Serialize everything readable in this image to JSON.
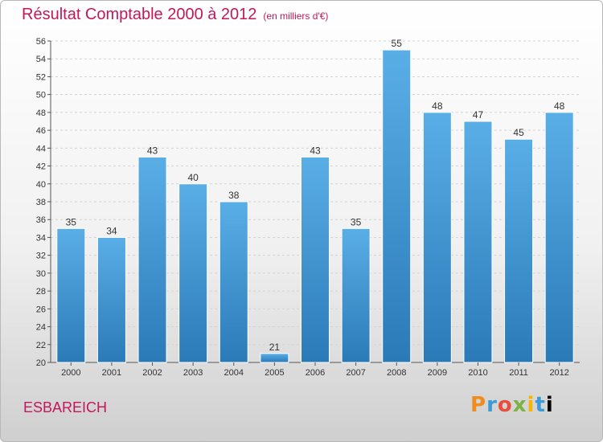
{
  "header": {
    "title": "Résultat Comptable 2000 à 2012",
    "subtitle": "(en milliers d'€)"
  },
  "footer": {
    "place": "ESBAREICH",
    "logo_letters": [
      "P",
      "r",
      "o",
      "x",
      "i",
      "t",
      "i"
    ]
  },
  "colors": {
    "bar_top": "#5aaee6",
    "bar_bottom": "#2a7ab8",
    "title": "#c2185b"
  },
  "chart_data": {
    "type": "bar",
    "title": "Résultat Comptable 2000 à 2012",
    "subtitle": "(en milliers d'€)",
    "categories": [
      "2000",
      "2001",
      "2002",
      "2003",
      "2004",
      "2005",
      "2006",
      "2007",
      "2008",
      "2009",
      "2010",
      "2011",
      "2012"
    ],
    "values": [
      35,
      34,
      43,
      40,
      38,
      21,
      43,
      35,
      55,
      48,
      47,
      45,
      48
    ],
    "ylim": [
      20,
      56
    ],
    "yticks": [
      20,
      22,
      24,
      26,
      28,
      30,
      32,
      34,
      36,
      38,
      40,
      42,
      44,
      46,
      48,
      50,
      52,
      54,
      56
    ],
    "grid": true,
    "legend": "none"
  }
}
